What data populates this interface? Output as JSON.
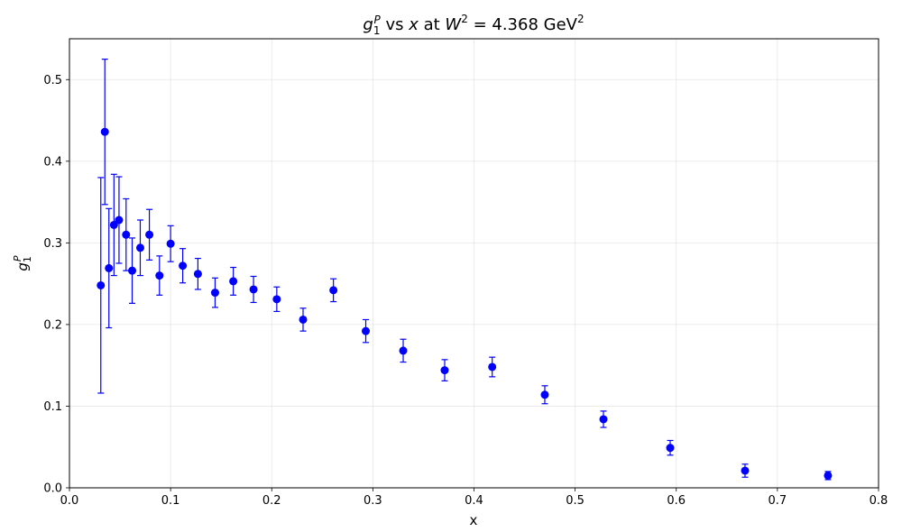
{
  "chart_data": {
    "type": "scatter",
    "title": {
      "prefix": "g",
      "prefix_sub": "1",
      "prefix_sup": "P",
      "mid1": " vs ",
      "var_x": "x",
      "mid2": " at ",
      "var_W": "W",
      "W_sup": "2",
      "eq": " = 4.368 GeV",
      "unit_sup": "2"
    },
    "xlabel": "x",
    "ylabel": {
      "base": "g",
      "sub": "1",
      "sup": "P"
    },
    "xlim": [
      0.0,
      0.8
    ],
    "ylim": [
      0.0,
      0.55
    ],
    "xticks": [
      0.0,
      0.1,
      0.2,
      0.3,
      0.4,
      0.5,
      0.6,
      0.7,
      0.8
    ],
    "yticks": [
      0.0,
      0.1,
      0.2,
      0.3,
      0.4,
      0.5
    ],
    "grid": true,
    "reference_line_y": 0.0,
    "color": "#0000ff",
    "points": [
      {
        "x": 0.031,
        "y": 0.248,
        "err": 0.132
      },
      {
        "x": 0.035,
        "y": 0.436,
        "err": 0.089
      },
      {
        "x": 0.039,
        "y": 0.269,
        "err": 0.073
      },
      {
        "x": 0.044,
        "y": 0.322,
        "err": 0.062
      },
      {
        "x": 0.049,
        "y": 0.328,
        "err": 0.053
      },
      {
        "x": 0.056,
        "y": 0.31,
        "err": 0.044
      },
      {
        "x": 0.062,
        "y": 0.266,
        "err": 0.04
      },
      {
        "x": 0.07,
        "y": 0.294,
        "err": 0.034
      },
      {
        "x": 0.079,
        "y": 0.31,
        "err": 0.031
      },
      {
        "x": 0.089,
        "y": 0.26,
        "err": 0.024
      },
      {
        "x": 0.1,
        "y": 0.299,
        "err": 0.022
      },
      {
        "x": 0.112,
        "y": 0.272,
        "err": 0.021
      },
      {
        "x": 0.127,
        "y": 0.262,
        "err": 0.019
      },
      {
        "x": 0.144,
        "y": 0.239,
        "err": 0.018
      },
      {
        "x": 0.162,
        "y": 0.253,
        "err": 0.017
      },
      {
        "x": 0.182,
        "y": 0.243,
        "err": 0.016
      },
      {
        "x": 0.205,
        "y": 0.231,
        "err": 0.015
      },
      {
        "x": 0.231,
        "y": 0.206,
        "err": 0.014
      },
      {
        "x": 0.261,
        "y": 0.242,
        "err": 0.014
      },
      {
        "x": 0.293,
        "y": 0.192,
        "err": 0.014
      },
      {
        "x": 0.33,
        "y": 0.168,
        "err": 0.014
      },
      {
        "x": 0.371,
        "y": 0.144,
        "err": 0.013
      },
      {
        "x": 0.418,
        "y": 0.148,
        "err": 0.012
      },
      {
        "x": 0.47,
        "y": 0.114,
        "err": 0.011
      },
      {
        "x": 0.528,
        "y": 0.084,
        "err": 0.01
      },
      {
        "x": 0.594,
        "y": 0.049,
        "err": 0.009
      },
      {
        "x": 0.668,
        "y": 0.021,
        "err": 0.008
      },
      {
        "x": 0.75,
        "y": 0.015,
        "err": 0.005
      }
    ]
  }
}
